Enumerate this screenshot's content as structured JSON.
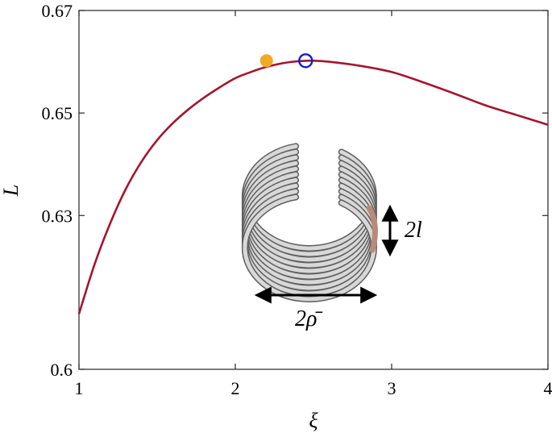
{
  "chart_data": {
    "type": "line",
    "xlabel": "ξ",
    "ylabel": "L",
    "xlim": [
      1,
      4
    ],
    "ylim": [
      0.6,
      0.67
    ],
    "xticks": [
      1,
      2,
      3,
      4
    ],
    "xtick_labels": [
      "1",
      "2",
      "3",
      "4"
    ],
    "yticks": [
      0.6,
      0.63,
      0.65,
      0.67
    ],
    "ytick_labels": [
      "0.6",
      "0.63",
      "0.65",
      "0.67"
    ],
    "grid": false,
    "series": [
      {
        "color": "#a3162e",
        "x": [
          1.0,
          1.1,
          1.2,
          1.3,
          1.4,
          1.5,
          1.6,
          1.7,
          1.8,
          1.9,
          2.0,
          2.1,
          2.2,
          2.3,
          2.4,
          2.5,
          2.6,
          2.8,
          3.0,
          3.2,
          3.4,
          3.6,
          3.8,
          4.0
        ],
        "y": [
          0.6108,
          0.6205,
          0.6285,
          0.6352,
          0.6405,
          0.6447,
          0.648,
          0.6507,
          0.653,
          0.655,
          0.6568,
          0.658,
          0.659,
          0.6597,
          0.6601,
          0.6602,
          0.66,
          0.6592,
          0.658,
          0.656,
          0.6538,
          0.6515,
          0.6496,
          0.6477
        ]
      }
    ],
    "markers": [
      {
        "style": "filled-circle",
        "color": "#f0aa28",
        "x": 2.2,
        "y": 0.6602
      },
      {
        "style": "open-circle",
        "color": "#0b1fd8",
        "x": 2.45,
        "y": 0.6602
      }
    ],
    "annotations": {
      "height_label": "2l",
      "width_label": "2ρ̄"
    }
  }
}
